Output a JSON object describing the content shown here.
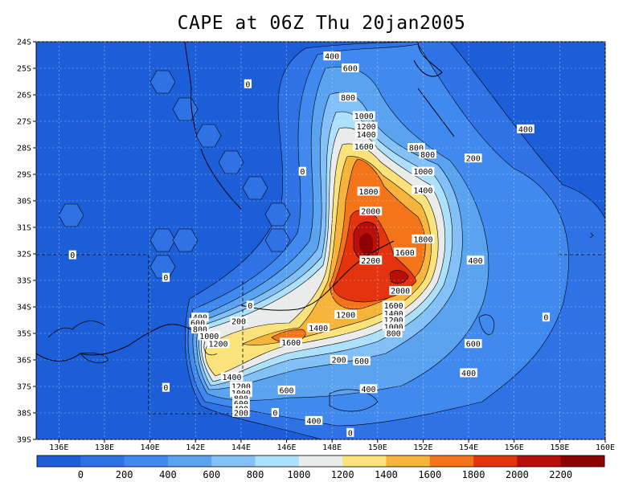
{
  "title": "CAPE at 06Z Thu 20jan2005",
  "lon_axis": {
    "range": [
      135,
      160
    ],
    "ticks": [
      "136E",
      "138E",
      "140E",
      "142E",
      "144E",
      "146E",
      "148E",
      "150E",
      "152E",
      "154E",
      "156E",
      "158E",
      "160E"
    ],
    "tick_values": [
      136,
      138,
      140,
      142,
      144,
      146,
      148,
      150,
      152,
      154,
      156,
      158,
      160
    ]
  },
  "lat_axis": {
    "range": [
      -39,
      -24
    ],
    "ticks": [
      "24S",
      "25S",
      "26S",
      "27S",
      "28S",
      "29S",
      "30S",
      "31S",
      "32S",
      "33S",
      "34S",
      "35S",
      "36S",
      "37S",
      "38S",
      "39S"
    ],
    "tick_values": [
      -24,
      -25,
      -26,
      -27,
      -28,
      -29,
      -30,
      -31,
      -32,
      -33,
      -34,
      -35,
      -36,
      -37,
      -38,
      -39
    ]
  },
  "colorbar": {
    "labels": [
      "0",
      "200",
      "400",
      "600",
      "800",
      "1000",
      "1200",
      "1400",
      "1600",
      "1800",
      "2000",
      "2200"
    ],
    "colors": [
      "#1c5dd8",
      "#2e72e6",
      "#4089ee",
      "#5aa3f0",
      "#82c0f7",
      "#ade0fa",
      "#e9ecea",
      "#fbe27a",
      "#f7b43a",
      "#f4741a",
      "#e3330f",
      "#b90f0a",
      "#8d0303"
    ]
  },
  "contour_labels": [
    {
      "text": "400",
      "lon": 148.0,
      "lat": -24.55
    },
    {
      "text": "600",
      "lon": 148.8,
      "lat": -25.0
    },
    {
      "text": "0",
      "lon": 144.3,
      "lat": -25.6
    },
    {
      "text": "800",
      "lon": 148.7,
      "lat": -26.1
    },
    {
      "text": "1000",
      "lon": 149.4,
      "lat": -26.8
    },
    {
      "text": "1200",
      "lon": 149.5,
      "lat": -27.2
    },
    {
      "text": "1400",
      "lon": 149.5,
      "lat": -27.5
    },
    {
      "text": "1600",
      "lon": 149.4,
      "lat": -27.95
    },
    {
      "text": "800",
      "lon": 151.7,
      "lat": -28.0
    },
    {
      "text": "800",
      "lon": 152.2,
      "lat": -28.25
    },
    {
      "text": "200",
      "lon": 154.2,
      "lat": -28.4
    },
    {
      "text": "400",
      "lon": 156.5,
      "lat": -27.3
    },
    {
      "text": "0",
      "lon": 146.7,
      "lat": -28.9
    },
    {
      "text": "1000",
      "lon": 152.0,
      "lat": -28.9
    },
    {
      "text": "1400",
      "lon": 152.0,
      "lat": -29.6
    },
    {
      "text": "1800",
      "lon": 149.6,
      "lat": -29.65
    },
    {
      "text": "2000",
      "lon": 149.7,
      "lat": -30.4
    },
    {
      "text": "1800",
      "lon": 152.0,
      "lat": -31.45
    },
    {
      "text": "0",
      "lon": 136.6,
      "lat": -32.05
    },
    {
      "text": "1600",
      "lon": 151.2,
      "lat": -31.95
    },
    {
      "text": "2200",
      "lon": 149.7,
      "lat": -32.25
    },
    {
      "text": "400",
      "lon": 154.3,
      "lat": -32.25
    },
    {
      "text": "0",
      "lon": 140.7,
      "lat": -32.9
    },
    {
      "text": "2000",
      "lon": 151.0,
      "lat": -33.4
    },
    {
      "text": "0",
      "lon": 144.4,
      "lat": -33.95
    },
    {
      "text": "1600",
      "lon": 150.7,
      "lat": -33.95
    },
    {
      "text": "1400",
      "lon": 150.7,
      "lat": -34.25
    },
    {
      "text": "1200",
      "lon": 148.6,
      "lat": -34.3
    },
    {
      "text": "1200",
      "lon": 150.7,
      "lat": -34.5
    },
    {
      "text": "1000",
      "lon": 150.7,
      "lat": -34.75
    },
    {
      "text": "800",
      "lon": 150.7,
      "lat": -35.0
    },
    {
      "text": "0",
      "lon": 157.4,
      "lat": -34.4
    },
    {
      "text": "400",
      "lon": 142.2,
      "lat": -34.4
    },
    {
      "text": "200",
      "lon": 143.9,
      "lat": -34.55
    },
    {
      "text": "600",
      "lon": 142.1,
      "lat": -34.6
    },
    {
      "text": "800",
      "lon": 142.2,
      "lat": -34.85
    },
    {
      "text": "1400",
      "lon": 147.4,
      "lat": -34.8
    },
    {
      "text": "1000",
      "lon": 142.6,
      "lat": -35.1
    },
    {
      "text": "1200",
      "lon": 143.0,
      "lat": -35.4
    },
    {
      "text": "1600",
      "lon": 146.2,
      "lat": -35.35
    },
    {
      "text": "600",
      "lon": 154.2,
      "lat": -35.4
    },
    {
      "text": "200",
      "lon": 148.3,
      "lat": -36.0
    },
    {
      "text": "600",
      "lon": 149.3,
      "lat": -36.05
    },
    {
      "text": "400",
      "lon": 154.0,
      "lat": -36.5
    },
    {
      "text": "1400",
      "lon": 143.6,
      "lat": -36.65
    },
    {
      "text": "0",
      "lon": 140.7,
      "lat": -37.05
    },
    {
      "text": "1200",
      "lon": 144.0,
      "lat": -37.0
    },
    {
      "text": "1000",
      "lon": 144.0,
      "lat": -37.25
    },
    {
      "text": "600",
      "lon": 146.0,
      "lat": -37.15
    },
    {
      "text": "400",
      "lon": 149.6,
      "lat": -37.1
    },
    {
      "text": "800",
      "lon": 144.0,
      "lat": -37.45
    },
    {
      "text": "600",
      "lon": 144.0,
      "lat": -37.65
    },
    {
      "text": "400",
      "lon": 144.0,
      "lat": -37.85
    },
    {
      "text": "200",
      "lon": 144.0,
      "lat": -38.0
    },
    {
      "text": "0",
      "lon": 145.5,
      "lat": -38.0
    },
    {
      "text": "400",
      "lon": 147.2,
      "lat": -38.3
    },
    {
      "text": "0",
      "lon": 148.8,
      "lat": -38.75
    }
  ]
}
